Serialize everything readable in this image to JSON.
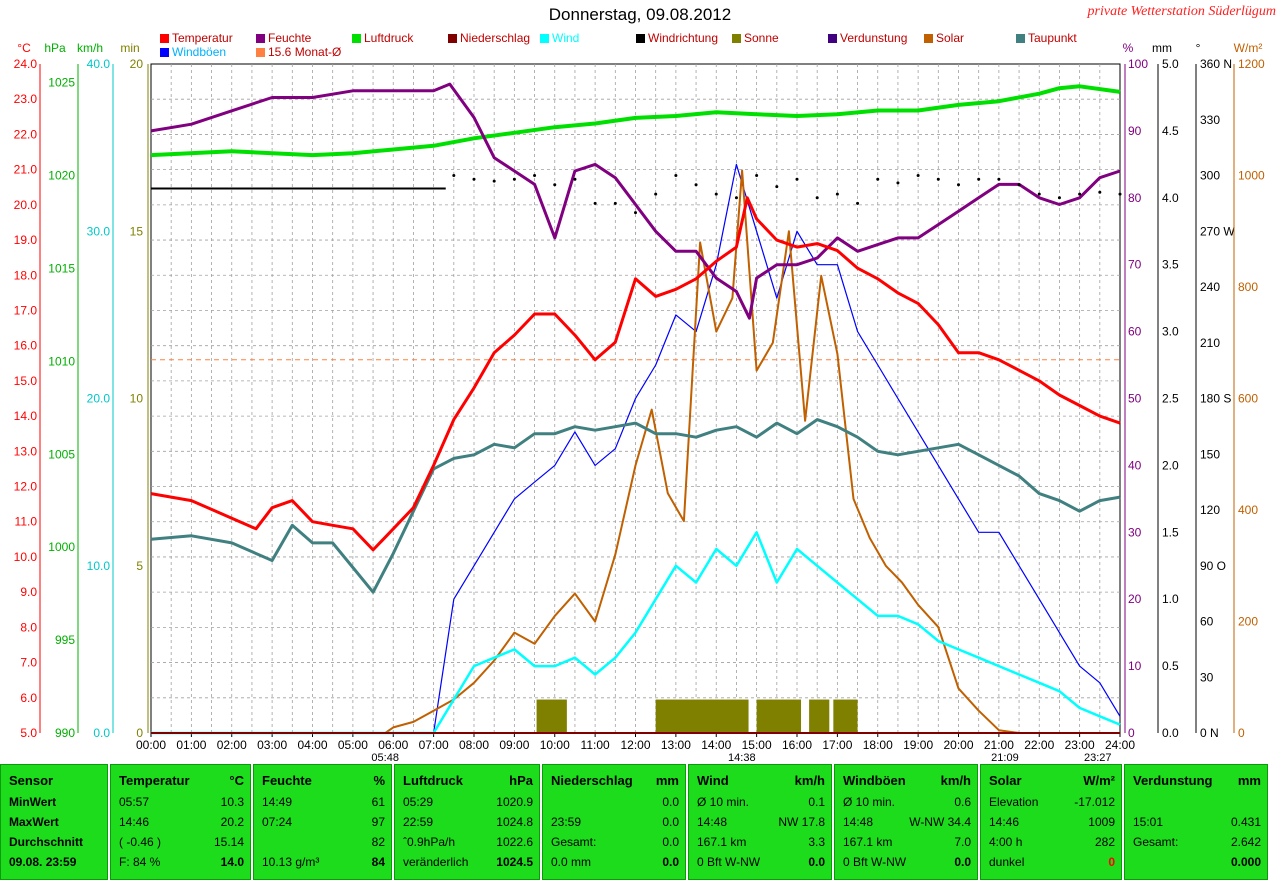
{
  "title": "Donnerstag, 09.08.2012",
  "station": "private Wetterstation Süderlügum",
  "legend": [
    {
      "label": "Temperatur",
      "color": "#ff0000"
    },
    {
      "label": "Feuchte",
      "color": "#800080"
    },
    {
      "label": "Luftdruck",
      "color": "#00e000"
    },
    {
      "label": "Niederschlag",
      "color": "#800000"
    },
    {
      "label": "Wind",
      "color": "#00ffff"
    },
    {
      "label": "Windrichtung",
      "color": "#000000"
    },
    {
      "label": "Sonne",
      "color": "#808000"
    },
    {
      "label": "Verdunstung",
      "color": "#400080"
    },
    {
      "label": "Solar",
      "color": "#c06000"
    },
    {
      "label": "Taupunkt",
      "color": "#408080"
    },
    {
      "label": "Windböen",
      "color": "#0000ff"
    },
    {
      "label": "15.6 Monat-Ø",
      "color": "#ff8040"
    }
  ],
  "axis_units": {
    "temp": "°C",
    "hpa": "hPa",
    "kmh": "km/h",
    "min": "min",
    "pct": "%",
    "mm": "mm",
    "deg": "°",
    "wm2": "W/m²"
  },
  "axes": {
    "temp": [
      "24.0",
      "23.0",
      "22.0",
      "21.0",
      "20.0",
      "19.0",
      "18.0",
      "17.0",
      "16.0",
      "15.0",
      "14.0",
      "13.0",
      "12.0",
      "11.0",
      "10.0",
      "9.0",
      "8.0",
      "7.0",
      "6.0",
      "5.0"
    ],
    "hpa": [
      "1025",
      "1020",
      "1015",
      "1010",
      "1005",
      "1000",
      "995",
      "990"
    ],
    "kmh": [
      "40.0",
      "30.0",
      "20.0",
      "10.0",
      "0.0"
    ],
    "min": [
      "20",
      "15",
      "10",
      "5",
      "0"
    ],
    "pct": [
      "100",
      "90",
      "80",
      "70",
      "60",
      "50",
      "40",
      "30",
      "20",
      "10",
      "0"
    ],
    "mm": [
      "5.0",
      "4.5",
      "4.0",
      "3.5",
      "3.0",
      "2.5",
      "2.0",
      "1.5",
      "1.0",
      "0.5",
      "0.0"
    ],
    "deg": [
      "360 N",
      "330",
      "300",
      "270 W",
      "240",
      "210",
      "180 S",
      "150",
      "120",
      "90 O",
      "60",
      "30",
      "0 N"
    ],
    "wm2": [
      "1200",
      "1000",
      "800",
      "600",
      "400",
      "200",
      "0"
    ],
    "time": [
      "00:00",
      "01:00",
      "02:00",
      "03:00",
      "04:00",
      "05:00",
      "06:00",
      "07:00",
      "08:00",
      "09:00",
      "10:00",
      "11:00",
      "12:00",
      "13:00",
      "14:00",
      "15:00",
      "16:00",
      "17:00",
      "18:00",
      "19:00",
      "20:00",
      "21:00",
      "22:00",
      "23:00",
      "24:00"
    ]
  },
  "markers": {
    "sunrise": "05:48",
    "sunset": "21:09",
    "solar_max": "14:38",
    "end": "23:27"
  },
  "chart_data": {
    "type": "line",
    "title": "Donnerstag, 09.08.2012",
    "x_label": "",
    "x_range": [
      "00:00",
      "24:00"
    ],
    "monthly_mean_temp": 15.6,
    "series": [
      {
        "name": "Temperatur",
        "unit": "°C",
        "ylim": [
          5,
          24
        ],
        "x": [
          0,
          1,
          2,
          2.6,
          3,
          3.5,
          4,
          4.5,
          5,
          5.5,
          6,
          6.5,
          7,
          7.5,
          8,
          8.5,
          9,
          9.5,
          10,
          10.5,
          11,
          11.5,
          12,
          12.5,
          13,
          13.5,
          14,
          14.5,
          14.77,
          15,
          15.5,
          16,
          16.5,
          17,
          17.5,
          18,
          18.5,
          19,
          19.5,
          20,
          20.5,
          21,
          21.5,
          22,
          22.5,
          23,
          23.5,
          24
        ],
        "y": [
          11.8,
          11.6,
          11.1,
          10.8,
          11.4,
          11.6,
          11.0,
          10.9,
          10.8,
          10.2,
          10.8,
          11.4,
          12.6,
          13.9,
          14.8,
          15.8,
          16.3,
          16.9,
          16.9,
          16.3,
          15.6,
          16.1,
          17.9,
          17.4,
          17.6,
          17.9,
          18.4,
          18.8,
          20.2,
          19.6,
          19.0,
          18.8,
          18.9,
          18.7,
          18.2,
          17.9,
          17.5,
          17.2,
          16.6,
          15.8,
          15.8,
          15.6,
          15.3,
          15.0,
          14.6,
          14.3,
          14.0,
          13.8
        ]
      },
      {
        "name": "Feuchte",
        "unit": "%",
        "ylim": [
          0,
          100
        ],
        "x": [
          0,
          1,
          2,
          3,
          4,
          5,
          6,
          7,
          7.4,
          8,
          8.5,
          9,
          9.5,
          10,
          10.5,
          11,
          11.5,
          12,
          12.5,
          13,
          13.5,
          14,
          14.5,
          14.82,
          15,
          15.5,
          16,
          16.5,
          17,
          17.5,
          18,
          18.5,
          19,
          19.5,
          20,
          20.5,
          21,
          21.5,
          22,
          22.5,
          23,
          23.5,
          24
        ],
        "y": [
          90,
          91,
          93,
          95,
          95,
          96,
          96,
          96,
          97,
          92,
          86,
          84,
          82,
          74,
          84,
          85,
          83,
          79,
          75,
          72,
          72,
          68,
          66,
          62,
          68,
          70,
          70,
          71,
          74,
          72,
          73,
          74,
          74,
          76,
          78,
          80,
          82,
          82,
          80,
          79,
          80,
          83,
          84
        ]
      },
      {
        "name": "Luftdruck",
        "unit": "hPa",
        "ylim": [
          990,
          1026
        ],
        "x": [
          0,
          2,
          4,
          5,
          6,
          7,
          8,
          9,
          10,
          11,
          12,
          13,
          14,
          15,
          16,
          17,
          18,
          19,
          20,
          21,
          22,
          22.5,
          23,
          24
        ],
        "y": [
          1021.1,
          1021.3,
          1021.1,
          1021.2,
          1021.4,
          1021.6,
          1022.0,
          1022.3,
          1022.6,
          1022.8,
          1023.1,
          1023.2,
          1023.4,
          1023.3,
          1023.2,
          1023.3,
          1023.5,
          1023.5,
          1023.8,
          1024.0,
          1024.4,
          1024.7,
          1024.8,
          1024.5
        ]
      },
      {
        "name": "Taupunkt",
        "unit": "°C",
        "ylim": [
          5,
          24
        ],
        "x": [
          0,
          1,
          2,
          3,
          3.5,
          4,
          4.5,
          5,
          5.5,
          6,
          6.5,
          7,
          7.5,
          8,
          8.5,
          9,
          9.5,
          10,
          10.5,
          11,
          11.5,
          12,
          12.5,
          13,
          13.5,
          14,
          14.5,
          15,
          15.5,
          16,
          16.5,
          17,
          17.5,
          18,
          18.5,
          19,
          19.5,
          20,
          20.5,
          21,
          21.5,
          22,
          22.5,
          23,
          23.5,
          24
        ],
        "y": [
          10.5,
          10.6,
          10.4,
          9.9,
          10.9,
          10.4,
          10.4,
          9.7,
          9.0,
          10.1,
          11.3,
          12.5,
          12.8,
          12.9,
          13.2,
          13.1,
          13.5,
          13.5,
          13.7,
          13.6,
          13.7,
          13.8,
          13.5,
          13.5,
          13.4,
          13.6,
          13.7,
          13.4,
          13.8,
          13.5,
          13.9,
          13.7,
          13.4,
          13.0,
          12.9,
          13.0,
          13.1,
          13.2,
          12.9,
          12.6,
          12.3,
          11.8,
          11.6,
          11.3,
          11.6,
          11.7
        ]
      },
      {
        "name": "Windrichtung",
        "unit": "°",
        "ylim": [
          0,
          360
        ],
        "x": [
          0,
          7.3,
          7.5,
          8,
          8.5,
          9,
          9.5,
          10,
          10.5,
          11,
          11.5,
          12,
          12.5,
          13,
          13.5,
          14,
          14.5,
          15,
          15.5,
          16,
          16.5,
          17,
          17.5,
          18,
          18.5,
          19,
          19.5,
          20,
          20.5,
          21,
          21.5,
          22,
          22.5,
          23,
          23.5,
          24
        ],
        "y": [
          293,
          293,
          300,
          298,
          297,
          298,
          300,
          295,
          298,
          285,
          285,
          280,
          290,
          300,
          295,
          290,
          288,
          300,
          294,
          298,
          288,
          290,
          285,
          298,
          296,
          300,
          298,
          295,
          298,
          298,
          295,
          290,
          288,
          290,
          291,
          290
        ]
      },
      {
        "name": "Solar",
        "unit": "W/m²",
        "ylim": [
          0,
          1200
        ],
        "x": [
          0,
          5.8,
          6,
          6.5,
          7,
          7.5,
          8,
          8.5,
          9,
          9.5,
          10,
          10.5,
          11,
          11.5,
          12,
          12.4,
          12.8,
          13.2,
          13.6,
          14,
          14.4,
          14.64,
          15,
          15.4,
          15.8,
          16.2,
          16.6,
          17,
          17.4,
          17.8,
          18.2,
          18.6,
          19,
          19.5,
          20,
          20.5,
          21,
          21.5,
          24
        ],
        "y": [
          0,
          0,
          10,
          20,
          40,
          60,
          90,
          130,
          180,
          160,
          210,
          250,
          200,
          320,
          480,
          580,
          430,
          380,
          880,
          720,
          780,
          1009,
          650,
          700,
          900,
          560,
          820,
          680,
          420,
          350,
          300,
          270,
          230,
          190,
          80,
          40,
          5,
          0,
          0
        ]
      },
      {
        "name": "Wind",
        "unit": "km/h",
        "ylim": [
          0,
          40
        ],
        "x": [
          0,
          7,
          7.5,
          8,
          8.5,
          9,
          9.5,
          10,
          10.5,
          11,
          11.5,
          12,
          12.5,
          13,
          13.5,
          14,
          14.5,
          15,
          15.5,
          16,
          16.5,
          17,
          17.5,
          18,
          18.5,
          19,
          19.5,
          20,
          20.5,
          21,
          21.5,
          22,
          22.5,
          23,
          23.5,
          24
        ],
        "y": [
          0,
          0,
          2,
          4,
          4.5,
          5,
          4,
          4,
          4.5,
          3.5,
          4.5,
          6,
          8,
          10,
          9,
          11,
          10,
          12,
          9,
          11,
          10,
          9,
          8,
          7,
          7,
          6.5,
          5.5,
          5,
          4.5,
          4,
          3.5,
          3,
          2.5,
          1.5,
          1,
          0.5
        ]
      },
      {
        "name": "Windböen",
        "unit": "km/h",
        "ylim": [
          0,
          40
        ],
        "x": [
          0,
          7,
          7.5,
          8,
          8.5,
          9,
          9.5,
          10,
          10.5,
          11,
          11.5,
          12,
          12.5,
          13,
          13.5,
          14,
          14.5,
          15,
          15.5,
          16,
          16.5,
          17,
          17.5,
          18,
          18.5,
          19,
          19.5,
          20,
          20.5,
          21,
          21.5,
          22,
          22.5,
          23,
          23.5,
          24
        ],
        "y": [
          0,
          0,
          8,
          10,
          12,
          14,
          15,
          16,
          18,
          16,
          17,
          20,
          22,
          25,
          24,
          28,
          34,
          30,
          26,
          30,
          28,
          28,
          24,
          22,
          20,
          18,
          16,
          14,
          12,
          12,
          10,
          8,
          6,
          4,
          3,
          1
        ]
      },
      {
        "name": "Sonne",
        "unit": "min",
        "ylim": [
          0,
          20
        ],
        "x": [
          0,
          9.5,
          9.5,
          10.3,
          12.5,
          14.8,
          16,
          16.3,
          16.8,
          17.5,
          17.6,
          24
        ],
        "y": [
          0,
          0,
          1,
          1,
          1,
          1,
          1,
          1,
          1,
          1,
          0,
          0
        ]
      },
      {
        "name": "Verdunstung",
        "unit": "mm",
        "ylim": [
          0,
          5
        ],
        "x": [
          0,
          24
        ],
        "y": [
          0,
          0
        ]
      },
      {
        "name": "Niederschlag",
        "unit": "mm",
        "ylim": [
          0,
          5
        ],
        "x": [
          0,
          24
        ],
        "y": [
          0,
          0
        ]
      }
    ]
  },
  "table": [
    {
      "header": [
        "Sensor",
        ""
      ],
      "rows": [
        [
          "MinWert",
          ""
        ],
        [
          "MaxWert",
          ""
        ],
        [
          "Durchschnitt",
          ""
        ],
        [
          "09.08. 23:59",
          ""
        ]
      ]
    },
    {
      "header": [
        "Temperatur",
        "°C"
      ],
      "rows": [
        [
          "05:57",
          "10.3"
        ],
        [
          "14:46",
          "20.2"
        ],
        [
          "( -0.46 )",
          "15.14"
        ],
        [
          "F: 84 %",
          "14.0"
        ]
      ]
    },
    {
      "header": [
        "Feuchte",
        "%"
      ],
      "rows": [
        [
          "14:49",
          "61"
        ],
        [
          "07:24",
          "97"
        ],
        [
          "",
          "82"
        ],
        [
          "10.13 g/m³",
          "84"
        ]
      ]
    },
    {
      "header": [
        "Luftdruck",
        "hPa"
      ],
      "rows": [
        [
          "05:29",
          "1020.9"
        ],
        [
          "22:59",
          "1024.8"
        ],
        [
          "ˆ0.9hPa/h",
          "1022.6"
        ],
        [
          "veränderlich",
          "1024.5"
        ]
      ]
    },
    {
      "header": [
        "Niederschlag",
        "mm"
      ],
      "rows": [
        [
          "",
          "0.0"
        ],
        [
          "23:59",
          "0.0"
        ],
        [
          "Gesamt:",
          "0.0"
        ],
        [
          "0.0 mm",
          "0.0"
        ]
      ]
    },
    {
      "header": [
        "Wind",
        "km/h"
      ],
      "rows": [
        [
          "Ø 10 min.",
          "0.1"
        ],
        [
          "14:48",
          "NW 17.8"
        ],
        [
          "167.1 km",
          "3.3"
        ],
        [
          "0 Bft W-NW",
          "0.0"
        ]
      ]
    },
    {
      "header": [
        "Windböen",
        "km/h"
      ],
      "rows": [
        [
          "Ø 10 min.",
          "0.6"
        ],
        [
          "14:48",
          "W-NW 34.4"
        ],
        [
          "167.1 km",
          "7.0"
        ],
        [
          "0 Bft W-NW",
          "0.0"
        ]
      ]
    },
    {
      "header": [
        "Solar",
        "W/m²"
      ],
      "rows": [
        [
          "Elevation",
          "-17.012"
        ],
        [
          "14:46",
          "1009"
        ],
        [
          "4:00 h",
          "282"
        ],
        [
          "dunkel",
          "0"
        ]
      ]
    },
    {
      "header": [
        "Verdunstung",
        "mm"
      ],
      "rows": [
        [
          "",
          ""
        ],
        [
          "15:01",
          "0.431"
        ],
        [
          "Gesamt:",
          "2.642"
        ],
        [
          "",
          "0.000"
        ]
      ]
    }
  ]
}
